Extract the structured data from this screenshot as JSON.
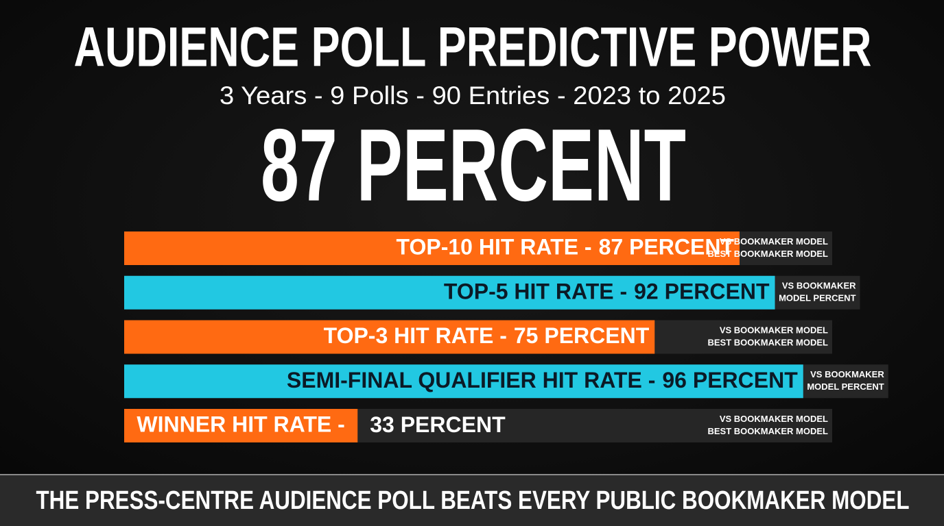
{
  "chart_data": {
    "type": "bar",
    "title": "AUDIENCE POLL PREDICTIVE POWER",
    "subtitle": "3 Years - 9 Polls - 90 Entries - 2023 to 2025",
    "headline": "87 PERCENT",
    "categories": [
      "TOP-10 HIT RATE -",
      "TOP-5 HIT RATE -",
      "TOP-3 HIT RATE -",
      "SEMI-FINAL QUALIFIER HIT RATE -",
      "WINNER HIT RATE -"
    ],
    "values": [
      87,
      92,
      75,
      96,
      33
    ],
    "value_labels": [
      "87 PERCENT",
      "92 PERCENT",
      "75 PERCENT",
      "96 PERCENT",
      "33 PERCENT"
    ],
    "colors": [
      "#ff6a12",
      "#22c8e2",
      "#ff6a12",
      "#22c8e2",
      "#ff6a12"
    ],
    "notes": [
      [
        "VS BOOKMAKER MODEL",
        "BEST BOOKMAKER MODEL"
      ],
      [
        "VS BOOKMAKER",
        "MODEL PERCENT"
      ],
      [
        "VS BOOKMAKER MODEL",
        "BEST BOOKMAKER MODEL"
      ],
      [
        "VS BOOKMAKER",
        "MODEL PERCENT"
      ],
      [
        "VS BOOKMAKER MODEL",
        "BEST BOOKMAKER MODEL"
      ]
    ],
    "xlim": [
      0,
      100
    ],
    "footer": "THE PRESS-CENTRE AUDIENCE POLL BEATS EVERY PUBLIC BOOKMAKER MODEL"
  }
}
